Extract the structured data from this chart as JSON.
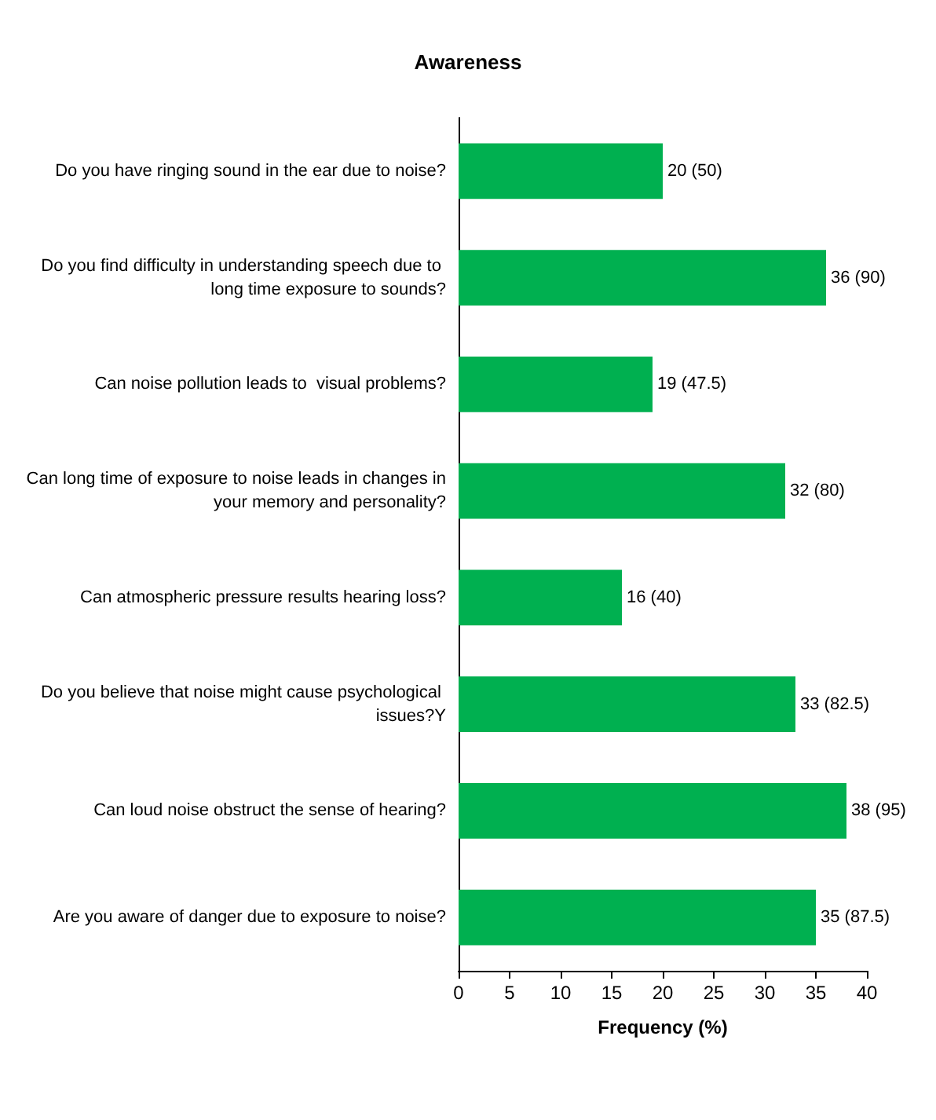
{
  "chart_data": {
    "type": "bar",
    "orientation": "horizontal",
    "title": "Awareness",
    "xlabel": "Frequency (%)",
    "categories": [
      "Do you have ringing sound in the ear due to noise?",
      "Do you find difficulty in understanding speech due to long time exposure to sounds?",
      "Can noise pollution leads to  visual problems?",
      "Can long time of exposure to noise leads in changes in your memory and personality?",
      "Can atmospheric pressure results hearing loss?",
      "Do you believe that noise might cause psychological issues?Y",
      "Can loud noise obstruct the sense of hearing?",
      "Are you aware of danger due to exposure to noise?"
    ],
    "values": [
      20,
      36,
      19,
      32,
      16,
      33,
      38,
      35
    ],
    "value_labels": [
      "20 (50)",
      "36 (90)",
      "19 (47.5)",
      "32 (80)",
      "16 (40)",
      "33 (82.5)",
      "38 (95)",
      "35 (87.5)"
    ],
    "color": "#00b050",
    "xlim": [
      0,
      40
    ],
    "xticks": [
      0,
      5,
      10,
      15,
      20,
      25,
      30,
      35,
      40
    ],
    "grid": false
  }
}
